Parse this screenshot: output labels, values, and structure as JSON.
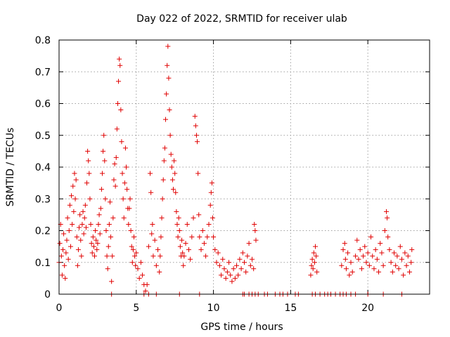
{
  "chart_data": {
    "type": "scatter",
    "title": "Day 022 of 2022, SRMTID for receiver ulab",
    "xlabel": "GPS time / hours",
    "ylabel": "SRMTID / TECUs",
    "xlim": [
      0,
      24
    ],
    "ylim": [
      0,
      0.8
    ],
    "grid": true,
    "marker": "plus",
    "x_ticks": [
      0,
      5,
      10,
      15,
      20
    ],
    "x_tick_labels": [
      "0",
      "5",
      "10",
      "15",
      "20"
    ],
    "y_ticks": [
      0,
      0.1,
      0.2,
      0.3,
      0.4,
      0.5,
      0.6,
      0.7,
      0.8
    ],
    "y_tick_labels": [
      "0",
      "0.1",
      "0.2",
      "0.3",
      "0.4",
      "0.5",
      "0.6",
      "0.7",
      "0.8"
    ],
    "colors": {
      "marker": "#e00000",
      "grid": "#a0a0a0",
      "axes": "#000000"
    },
    "series": [
      {
        "name": "SRMTID",
        "points": [
          [
            0.0,
            0.1
          ],
          [
            0.05,
            0.16
          ],
          [
            0.1,
            0.22
          ],
          [
            0.15,
            0.12
          ],
          [
            0.2,
            0.06
          ],
          [
            0.25,
            0.14
          ],
          [
            0.3,
            0.19
          ],
          [
            0.35,
            0.09
          ],
          [
            0.4,
            0.05
          ],
          [
            0.45,
            0.13
          ],
          [
            0.5,
            0.17
          ],
          [
            0.55,
            0.24
          ],
          [
            0.6,
            0.11
          ],
          [
            0.65,
            0.2
          ],
          [
            0.7,
            0.28
          ],
          [
            0.75,
            0.15
          ],
          [
            0.8,
            0.31
          ],
          [
            0.85,
            0.22
          ],
          [
            0.9,
            0.34
          ],
          [
            0.95,
            0.26
          ],
          [
            1.0,
            0.38
          ],
          [
            1.05,
            0.3
          ],
          [
            1.1,
            0.36
          ],
          [
            1.15,
            0.18
          ],
          [
            1.2,
            0.09
          ],
          [
            1.25,
            0.14
          ],
          [
            1.3,
            0.21
          ],
          [
            1.35,
            0.25
          ],
          [
            1.4,
            0.17
          ],
          [
            1.45,
            0.12
          ],
          [
            1.5,
            0.22
          ],
          [
            1.55,
            0.26
          ],
          [
            1.6,
            0.19
          ],
          [
            1.65,
            0.24
          ],
          [
            1.7,
            0.28
          ],
          [
            1.75,
            0.21
          ],
          [
            1.8,
            0.35
          ],
          [
            1.85,
            0.45
          ],
          [
            1.9,
            0.42
          ],
          [
            1.95,
            0.38
          ],
          [
            2.0,
            0.3
          ],
          [
            2.05,
            0.22
          ],
          [
            2.1,
            0.16
          ],
          [
            2.15,
            0.13
          ],
          [
            2.2,
            0.18
          ],
          [
            2.25,
            0.15
          ],
          [
            2.3,
            0.12
          ],
          [
            2.35,
            0.2
          ],
          [
            2.4,
            0.17
          ],
          [
            2.45,
            0.14
          ],
          [
            2.5,
            0.16
          ],
          [
            2.55,
            0.22
          ],
          [
            2.6,
            0.25
          ],
          [
            2.65,
            0.19
          ],
          [
            2.7,
            0.27
          ],
          [
            2.75,
            0.33
          ],
          [
            2.8,
            0.38
          ],
          [
            2.85,
            0.45
          ],
          [
            2.9,
            0.5
          ],
          [
            2.95,
            0.42
          ],
          [
            3.0,
            0.3
          ],
          [
            3.05,
            0.2
          ],
          [
            3.1,
            0.12
          ],
          [
            3.15,
            0.08
          ],
          [
            3.2,
            0.15
          ],
          [
            3.25,
            0.22
          ],
          [
            3.3,
            0.29
          ],
          [
            3.35,
            0.18
          ],
          [
            3.4,
            0.04
          ],
          [
            3.45,
            0.12
          ],
          [
            3.5,
            0.24
          ],
          [
            3.55,
            0.36
          ],
          [
            3.6,
            0.41
          ],
          [
            3.65,
            0.34
          ],
          [
            3.7,
            0.43
          ],
          [
            3.75,
            0.52
          ],
          [
            3.8,
            0.6
          ],
          [
            3.85,
            0.67
          ],
          [
            3.9,
            0.74
          ],
          [
            3.95,
            0.72
          ],
          [
            4.0,
            0.58
          ],
          [
            4.05,
            0.48
          ],
          [
            4.1,
            0.38
          ],
          [
            4.15,
            0.3
          ],
          [
            4.2,
            0.24
          ],
          [
            4.25,
            0.35
          ],
          [
            4.3,
            0.46
          ],
          [
            4.35,
            0.4
          ],
          [
            4.4,
            0.33
          ],
          [
            4.45,
            0.27
          ],
          [
            4.5,
            0.22
          ],
          [
            4.55,
            0.27
          ],
          [
            4.6,
            0.3
          ],
          [
            4.65,
            0.2
          ],
          [
            4.7,
            0.15
          ],
          [
            4.75,
            0.1
          ],
          [
            4.8,
            0.14
          ],
          [
            4.85,
            0.18
          ],
          [
            4.9,
            0.12
          ],
          [
            4.95,
            0.09
          ],
          [
            5.0,
            0.13
          ],
          [
            5.1,
            0.08
          ],
          [
            5.2,
            0.05
          ],
          [
            5.3,
            0.1
          ],
          [
            5.4,
            0.06
          ],
          [
            5.5,
            0.03
          ],
          [
            5.6,
            0.01
          ],
          [
            5.7,
            0.03
          ],
          [
            5.8,
            0.15
          ],
          [
            5.9,
            0.38
          ],
          [
            5.95,
            0.32
          ],
          [
            6.0,
            0.19
          ],
          [
            6.05,
            0.22
          ],
          [
            6.1,
            0.12
          ],
          [
            6.2,
            0.17
          ],
          [
            6.3,
            0.09
          ],
          [
            6.4,
            0.14
          ],
          [
            6.5,
            0.07
          ],
          [
            6.55,
            0.12
          ],
          [
            6.6,
            0.18
          ],
          [
            6.65,
            0.24
          ],
          [
            6.7,
            0.3
          ],
          [
            6.75,
            0.36
          ],
          [
            6.8,
            0.42
          ],
          [
            6.85,
            0.46
          ],
          [
            6.9,
            0.55
          ],
          [
            6.95,
            0.63
          ],
          [
            7.0,
            0.72
          ],
          [
            7.05,
            0.78
          ],
          [
            7.1,
            0.68
          ],
          [
            7.15,
            0.58
          ],
          [
            7.2,
            0.5
          ],
          [
            7.25,
            0.44
          ],
          [
            7.3,
            0.4
          ],
          [
            7.35,
            0.36
          ],
          [
            7.4,
            0.33
          ],
          [
            7.45,
            0.42
          ],
          [
            7.5,
            0.38
          ],
          [
            7.55,
            0.32
          ],
          [
            7.6,
            0.26
          ],
          [
            7.65,
            0.22
          ],
          [
            7.7,
            0.18
          ],
          [
            7.75,
            0.24
          ],
          [
            7.8,
            0.2
          ],
          [
            7.85,
            0.15
          ],
          [
            7.9,
            0.12
          ],
          [
            7.95,
            0.17
          ],
          [
            8.0,
            0.13
          ],
          [
            8.05,
            0.09
          ],
          [
            8.1,
            0.12
          ],
          [
            8.2,
            0.16
          ],
          [
            8.3,
            0.22
          ],
          [
            8.4,
            0.14
          ],
          [
            8.5,
            0.11
          ],
          [
            8.6,
            0.18
          ],
          [
            8.7,
            0.24
          ],
          [
            8.8,
            0.56
          ],
          [
            8.85,
            0.53
          ],
          [
            8.9,
            0.5
          ],
          [
            8.95,
            0.48
          ],
          [
            9.0,
            0.38
          ],
          [
            9.05,
            0.25
          ],
          [
            9.1,
            0.18
          ],
          [
            9.2,
            0.14
          ],
          [
            9.3,
            0.2
          ],
          [
            9.4,
            0.16
          ],
          [
            9.5,
            0.12
          ],
          [
            9.6,
            0.18
          ],
          [
            9.7,
            0.22
          ],
          [
            9.8,
            0.28
          ],
          [
            9.85,
            0.32
          ],
          [
            9.9,
            0.35
          ],
          [
            9.95,
            0.24
          ],
          [
            10.0,
            0.18
          ],
          [
            10.1,
            0.14
          ],
          [
            10.2,
            0.1
          ],
          [
            10.3,
            0.13
          ],
          [
            10.4,
            0.09
          ],
          [
            10.5,
            0.06
          ],
          [
            10.6,
            0.11
          ],
          [
            10.7,
            0.08
          ],
          [
            10.8,
            0.05
          ],
          [
            10.9,
            0.07
          ],
          [
            11.0,
            0.1
          ],
          [
            11.1,
            0.06
          ],
          [
            11.2,
            0.04
          ],
          [
            11.3,
            0.08
          ],
          [
            11.4,
            0.05
          ],
          [
            11.5,
            0.09
          ],
          [
            11.6,
            0.06
          ],
          [
            11.7,
            0.11
          ],
          [
            11.8,
            0.08
          ],
          [
            11.9,
            0.13
          ],
          [
            12.0,
            0.1
          ],
          [
            12.1,
            0.07
          ],
          [
            12.2,
            0.12
          ],
          [
            12.3,
            0.16
          ],
          [
            12.4,
            0.09
          ],
          [
            12.5,
            0.11
          ],
          [
            12.6,
            0.08
          ],
          [
            12.65,
            0.22
          ],
          [
            12.7,
            0.2
          ],
          [
            12.75,
            0.17
          ],
          [
            16.3,
            0.06
          ],
          [
            16.35,
            0.09
          ],
          [
            16.4,
            0.11
          ],
          [
            16.45,
            0.08
          ],
          [
            16.5,
            0.13
          ],
          [
            16.55,
            0.1
          ],
          [
            16.6,
            0.15
          ],
          [
            16.65,
            0.12
          ],
          [
            16.7,
            0.07
          ],
          [
            18.3,
            0.09
          ],
          [
            18.4,
            0.14
          ],
          [
            18.5,
            0.16
          ],
          [
            18.55,
            0.11
          ],
          [
            18.6,
            0.08
          ],
          [
            18.7,
            0.13
          ],
          [
            18.8,
            0.06
          ],
          [
            18.9,
            0.1
          ],
          [
            19.0,
            0.07
          ],
          [
            19.2,
            0.12
          ],
          [
            19.3,
            0.17
          ],
          [
            19.4,
            0.11
          ],
          [
            19.5,
            0.14
          ],
          [
            19.6,
            0.08
          ],
          [
            19.7,
            0.12
          ],
          [
            19.8,
            0.15
          ],
          [
            19.9,
            0.1
          ],
          [
            20.0,
            0.13
          ],
          [
            20.1,
            0.09
          ],
          [
            20.2,
            0.18
          ],
          [
            20.3,
            0.12
          ],
          [
            20.4,
            0.08
          ],
          [
            20.5,
            0.14
          ],
          [
            20.6,
            0.11
          ],
          [
            20.7,
            0.07
          ],
          [
            20.8,
            0.16
          ],
          [
            20.9,
            0.13
          ],
          [
            21.0,
            0.09
          ],
          [
            21.1,
            0.2
          ],
          [
            21.2,
            0.26
          ],
          [
            21.25,
            0.24
          ],
          [
            21.3,
            0.18
          ],
          [
            21.4,
            0.14
          ],
          [
            21.5,
            0.1
          ],
          [
            21.6,
            0.07
          ],
          [
            21.7,
            0.13
          ],
          [
            21.8,
            0.09
          ],
          [
            21.9,
            0.12
          ],
          [
            22.0,
            0.08
          ],
          [
            22.1,
            0.15
          ],
          [
            22.2,
            0.11
          ],
          [
            22.3,
            0.06
          ],
          [
            22.4,
            0.13
          ],
          [
            22.5,
            0.09
          ],
          [
            22.6,
            0.12
          ],
          [
            22.7,
            0.07
          ],
          [
            22.8,
            0.1
          ],
          [
            22.85,
            0.14
          ]
        ],
        "zero_points_x": [
          3.4,
          5.5,
          5.8,
          6.3,
          7.8,
          9.1,
          11.9,
          12.0,
          12.3,
          12.5,
          12.7,
          12.9,
          13.3,
          13.5,
          14.0,
          14.3,
          14.5,
          14.8,
          15.3,
          15.5,
          16.4,
          16.6,
          16.9,
          17.2,
          17.4,
          17.6,
          17.9,
          18.2,
          18.4,
          18.6,
          18.9,
          19.2,
          20.0,
          21.0,
          22.2
        ]
      }
    ]
  }
}
